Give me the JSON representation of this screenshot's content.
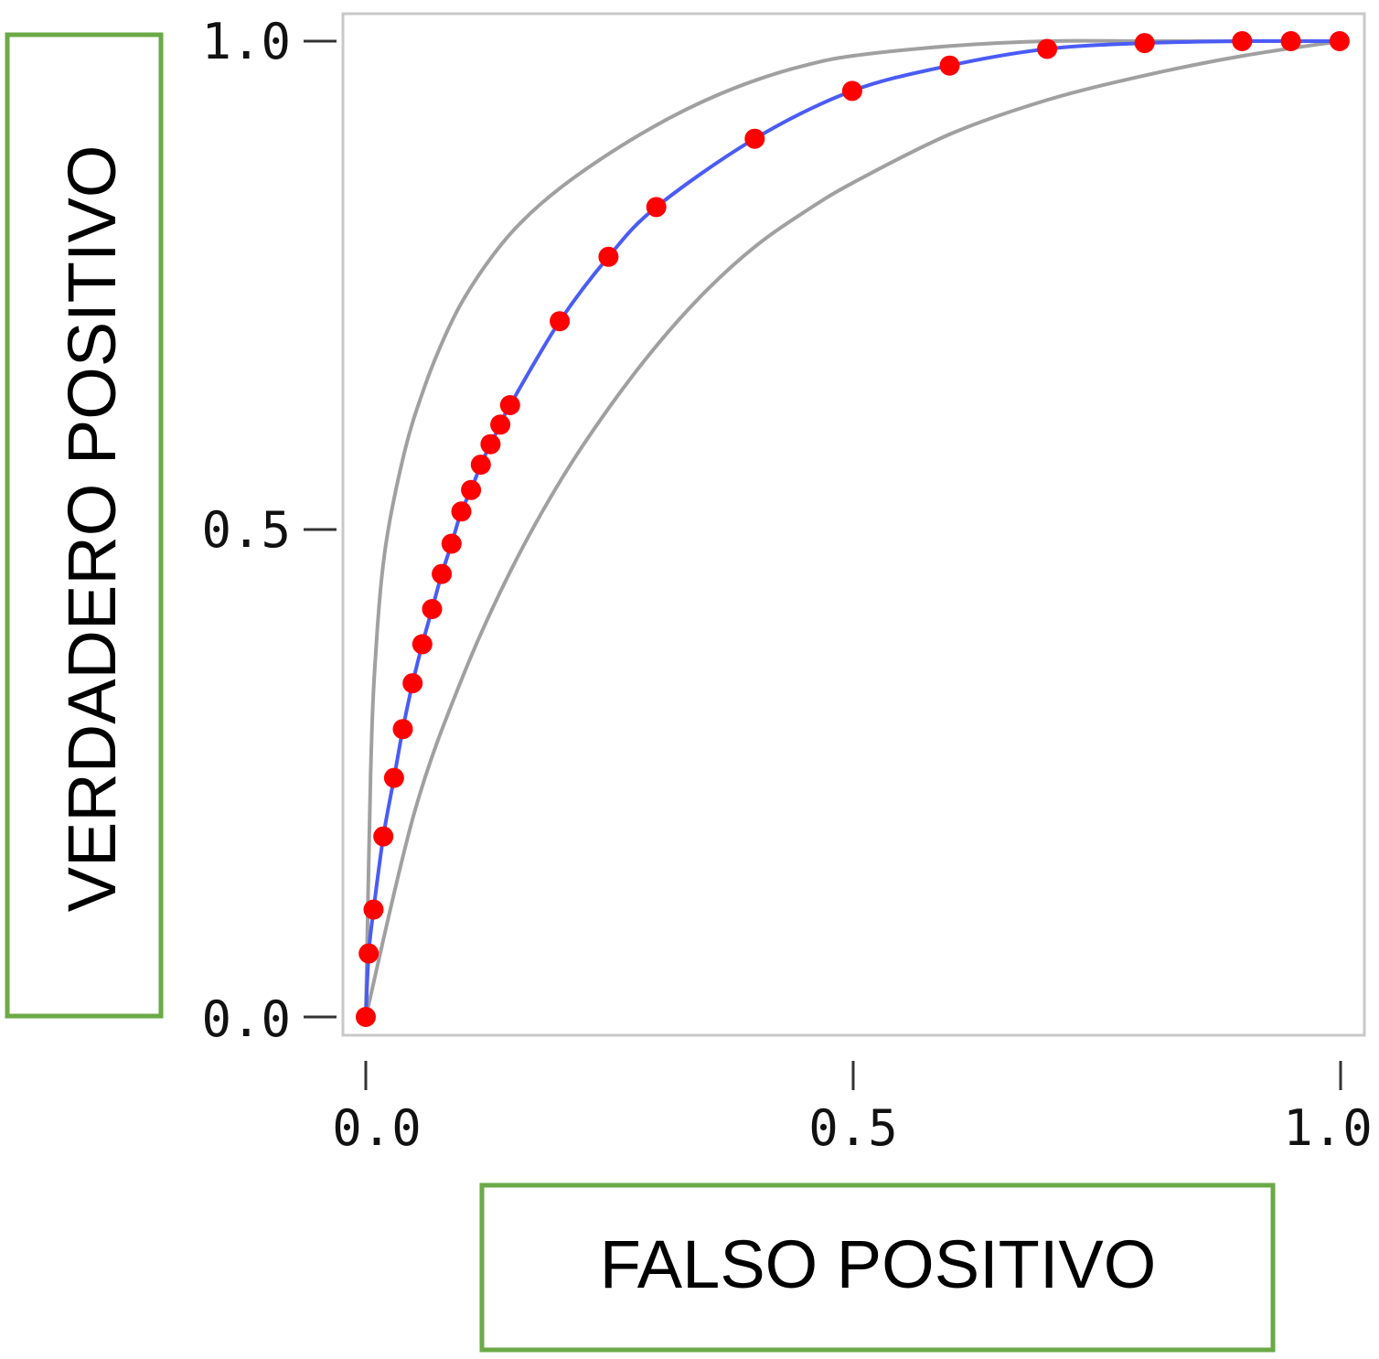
{
  "chart_data": {
    "type": "line",
    "title": "",
    "xlabel": "FALSO POSITIVO",
    "ylabel": "VERDADERO POSITIVO",
    "xlim": [
      0,
      1
    ],
    "ylim": [
      0,
      1
    ],
    "x_ticks": [
      "0.0",
      "0.5",
      "1.0"
    ],
    "y_ticks": [
      "0.0",
      "0.5",
      "1.0"
    ],
    "grid": false,
    "colors": {
      "main_line": "#4a5cf5",
      "points": "#ff0000",
      "band_lines": "#a0a0a0",
      "frame": "#c8c8c8",
      "label_box_border": "#6aaa46"
    },
    "series": [
      {
        "role": "roc_curve",
        "x": [
          0.0,
          0.003,
          0.008,
          0.018,
          0.029,
          0.038,
          0.048,
          0.058,
          0.068,
          0.078,
          0.088,
          0.098,
          0.108,
          0.118,
          0.128,
          0.138,
          0.148,
          0.199,
          0.249,
          0.298,
          0.399,
          0.499,
          0.599,
          0.699,
          0.799,
          0.899,
          0.949,
          0.999
        ],
        "y": [
          0.0,
          0.065,
          0.11,
          0.185,
          0.245,
          0.295,
          0.342,
          0.382,
          0.418,
          0.454,
          0.485,
          0.518,
          0.54,
          0.566,
          0.587,
          0.607,
          0.627,
          0.713,
          0.779,
          0.83,
          0.9,
          0.949,
          0.975,
          0.992,
          0.998,
          1.0,
          1.0,
          1.0
        ]
      },
      {
        "role": "upper_band",
        "x": [
          0.0,
          0.005,
          0.01,
          0.02,
          0.04,
          0.06,
          0.08,
          0.1,
          0.13,
          0.16,
          0.2,
          0.25,
          0.3,
          0.35,
          0.4,
          0.45,
          0.5,
          0.6,
          0.7,
          0.8,
          0.9,
          1.0
        ],
        "y": [
          0.0,
          0.25,
          0.37,
          0.48,
          0.58,
          0.645,
          0.695,
          0.735,
          0.78,
          0.815,
          0.85,
          0.885,
          0.915,
          0.94,
          0.96,
          0.975,
          0.985,
          0.995,
          1.0,
          1.0,
          1.0,
          1.0
        ]
      },
      {
        "role": "lower_band",
        "x": [
          0.0,
          0.05,
          0.1,
          0.15,
          0.2,
          0.25,
          0.3,
          0.35,
          0.4,
          0.45,
          0.5,
          0.6,
          0.7,
          0.8,
          0.9,
          1.0
        ],
        "y": [
          0.0,
          0.21,
          0.35,
          0.46,
          0.55,
          0.625,
          0.69,
          0.745,
          0.79,
          0.825,
          0.855,
          0.905,
          0.94,
          0.965,
          0.985,
          1.0
        ]
      }
    ]
  }
}
